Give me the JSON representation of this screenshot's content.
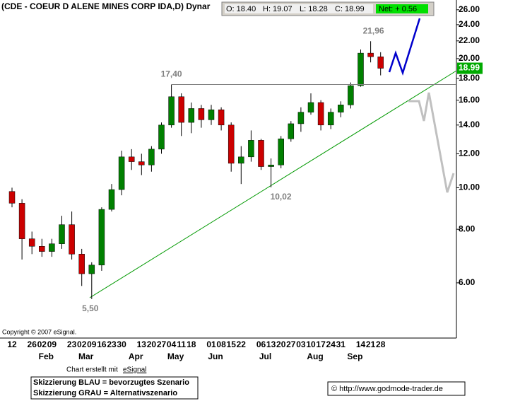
{
  "chart_data": {
    "type": "candlestick",
    "title": "(CDE - COEUR D ALENE MINES CORP IDA,D) Dynar",
    "info": {
      "open": {
        "value": 18.4,
        "label": "O: 18.40"
      },
      "high": {
        "value": 19.07,
        "label": "H: 19.07"
      },
      "low": {
        "value": 18.28,
        "label": "L: 18.28"
      },
      "close": {
        "value": 18.99,
        "label": "C: 18.99"
      },
      "net": {
        "value": 0.56,
        "label": "Net: + 0.56"
      }
    },
    "last_price": 18.99,
    "categories": [
      "12",
      null,
      "26",
      "02",
      "09",
      null,
      "23",
      "02",
      "09",
      "16",
      "23",
      "30",
      null,
      "13",
      "20",
      "27",
      "04",
      "11",
      "18",
      null,
      "01",
      "08",
      "15",
      "22",
      null,
      "06",
      "13",
      "20",
      "27",
      "03",
      "10",
      "17",
      "24",
      "31",
      null,
      "14",
      "21",
      "28"
    ],
    "month_labels": [
      null,
      null,
      null,
      "Feb",
      null,
      null,
      null,
      "Mar",
      null,
      null,
      null,
      null,
      "Apr",
      null,
      null,
      null,
      "May",
      null,
      null,
      null,
      "Jun",
      null,
      null,
      null,
      null,
      "Jul",
      null,
      null,
      null,
      null,
      "Aug",
      null,
      null,
      null,
      "Sep",
      null,
      null,
      null
    ],
    "open": [
      9.8,
      9.2,
      7.6,
      7.3,
      7.1,
      7.4,
      8.2,
      7.0,
      6.3,
      6.6,
      8.9,
      9.9,
      11.8,
      11.5,
      11.3,
      12.3,
      14.0,
      16.3,
      14.2,
      15.3,
      14.4,
      15.2,
      14.0,
      11.4,
      11.8,
      12.9,
      11.2,
      11.3,
      13.0,
      14.1,
      15.0,
      15.8,
      14.0,
      15.0,
      15.6,
      17.3,
      20.6,
      20.2
    ],
    "high": [
      10.0,
      9.4,
      7.9,
      7.6,
      7.6,
      8.6,
      8.8,
      7.2,
      6.7,
      9.0,
      10.2,
      12.2,
      12.3,
      12.0,
      12.5,
      14.2,
      17.4,
      16.6,
      15.8,
      15.6,
      15.6,
      15.4,
      14.2,
      12.5,
      13.6,
      13.0,
      11.7,
      13.2,
      14.3,
      15.4,
      16.6,
      16.0,
      15.3,
      15.9,
      17.6,
      21.0,
      21.96,
      20.7
    ],
    "low": [
      9.0,
      6.8,
      7.0,
      6.9,
      6.9,
      7.2,
      6.8,
      5.9,
      5.5,
      6.4,
      8.8,
      9.6,
      11.0,
      10.7,
      10.9,
      12.0,
      13.8,
      13.2,
      13.4,
      13.8,
      14.0,
      13.6,
      10.9,
      10.2,
      11.5,
      11.0,
      10.02,
      11.1,
      12.8,
      13.5,
      14.8,
      13.6,
      13.7,
      14.6,
      15.3,
      17.2,
      19.6,
      18.28
    ],
    "close": [
      9.2,
      7.6,
      7.3,
      7.1,
      7.4,
      8.2,
      7.0,
      6.3,
      6.6,
      8.9,
      9.9,
      11.8,
      11.5,
      11.3,
      12.3,
      14.0,
      16.3,
      14.2,
      15.3,
      14.4,
      15.2,
      14.0,
      11.4,
      11.8,
      12.9,
      11.2,
      11.3,
      13.0,
      14.1,
      15.0,
      15.8,
      14.0,
      15.0,
      15.6,
      17.3,
      20.6,
      20.2,
      18.99
    ],
    "up_color": "#008000",
    "down_color": "#cc0000",
    "ylim": [
      4.46,
      27.4
    ],
    "log_scale": true,
    "yticks": [
      {
        "value": 6,
        "label": "6.00"
      },
      {
        "value": 8,
        "label": "8.00"
      },
      {
        "value": 10,
        "label": "10.00"
      },
      {
        "value": 12,
        "label": "12.00"
      },
      {
        "value": 14,
        "label": "14.00"
      },
      {
        "value": 16,
        "label": "16.00"
      },
      {
        "value": 18,
        "label": "18.00"
      },
      {
        "value": 20,
        "label": "20.00"
      },
      {
        "value": 22,
        "label": "22.00"
      },
      {
        "value": 24,
        "label": "24.00"
      },
      {
        "value": 26,
        "label": "26.00"
      }
    ],
    "annotations": [
      {
        "value": 17.4,
        "label": "17,40"
      },
      {
        "value": 21.96,
        "label": "21,96"
      },
      {
        "value": 10.02,
        "label": "10,02"
      },
      {
        "value": 5.5,
        "label": "5,50"
      }
    ],
    "copyright": "Copyright © 2007 eSignal."
  },
  "credit": "Chart erstellt mit",
  "credit_link": "eSignal",
  "notes": [
    "Skizzierung BLAU = bevorzugtes Szenario",
    "Skizzierung GRAU = Alternativszenario"
  ],
  "source": "© http://www.godmode-trader.de"
}
